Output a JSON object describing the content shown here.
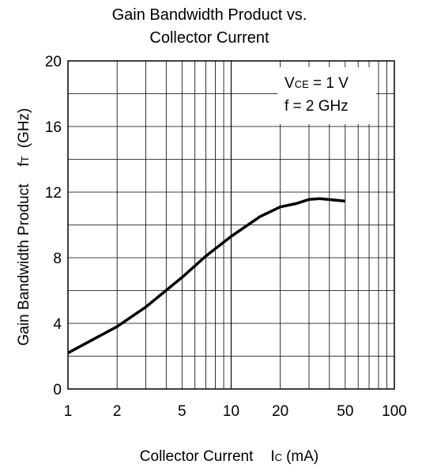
{
  "chart_data": {
    "type": "line",
    "title_line1": "Gain Bandwidth Product vs.",
    "title_line2": "Collector Current",
    "xlabel_text": "Collector Current",
    "xlabel_symbol_main": "I",
    "xlabel_symbol_sub": "C",
    "xlabel_unit": "(mA)",
    "ylabel_text": "Gain Bandwidth Product",
    "ylabel_symbol_main": "f",
    "ylabel_symbol_sub": "T",
    "ylabel_unit": "(GHz)",
    "x_scale": "log",
    "xlim": [
      1,
      100
    ],
    "ylim": [
      0,
      20
    ],
    "x_ticks": [
      1,
      2,
      5,
      10,
      20,
      50,
      100
    ],
    "x_tick_labels": [
      "1",
      "2",
      "5",
      "10",
      "20",
      "50",
      "100"
    ],
    "y_ticks": [
      0,
      4,
      8,
      12,
      16,
      20
    ],
    "y_tick_labels": [
      "0",
      "4",
      "8",
      "12",
      "16",
      "20"
    ],
    "grid": true,
    "annotation": {
      "line1_main": "V",
      "line1_sub": "CE",
      "line1_value": " = 1 V",
      "line2": "f = 2 GHz",
      "placement": "top-right"
    },
    "series": [
      {
        "x": [
          1,
          2,
          3,
          5,
          7,
          10,
          15,
          20,
          25,
          30,
          35,
          50
        ],
        "y": [
          2.2,
          3.8,
          5.0,
          6.8,
          8.1,
          9.3,
          10.5,
          11.1,
          11.3,
          11.55,
          11.6,
          11.45
        ]
      }
    ],
    "line_color": "#000000"
  }
}
